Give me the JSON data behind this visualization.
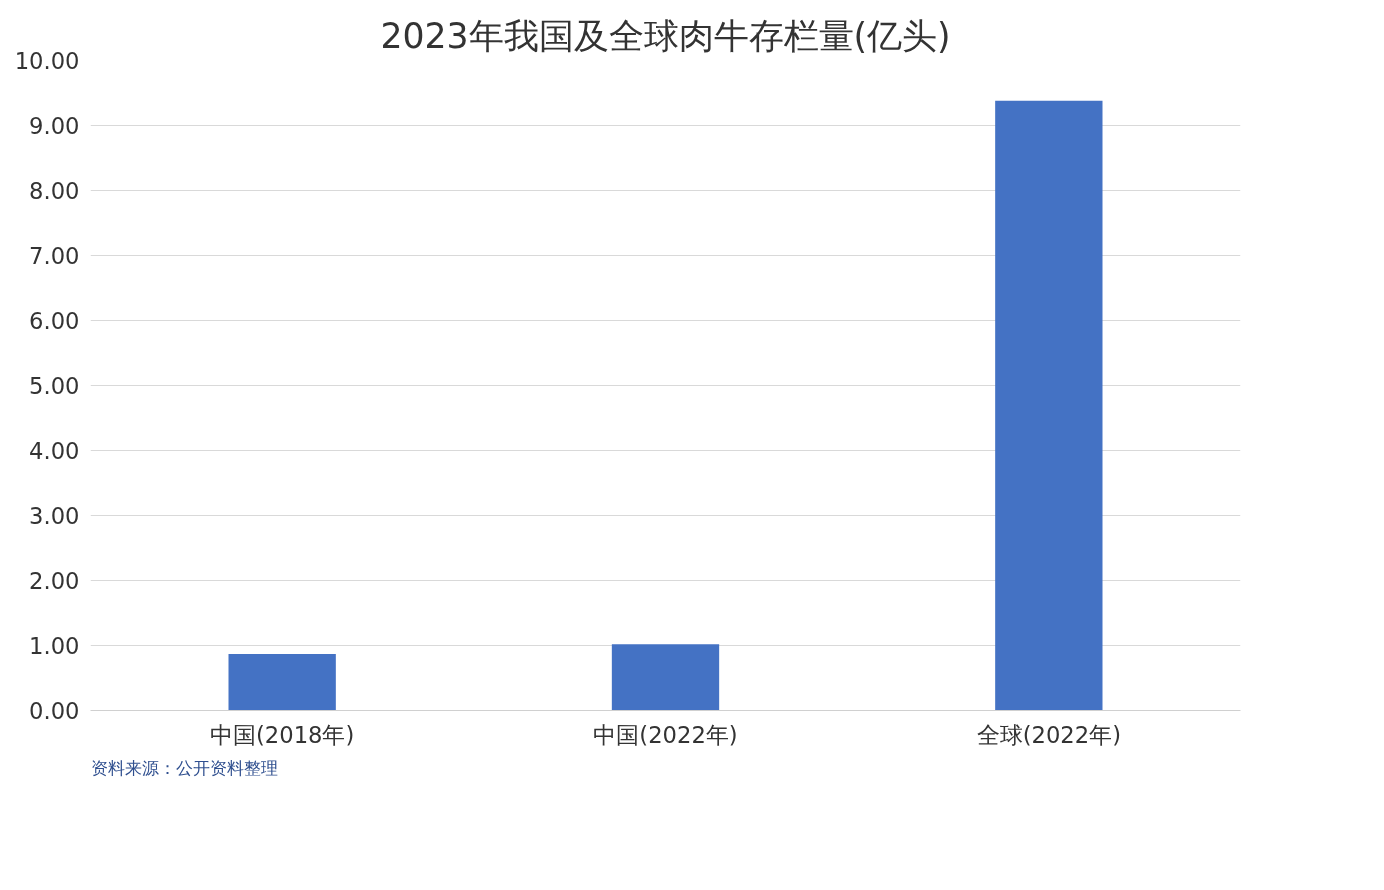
{
  "chart_data": {
    "type": "bar",
    "title": "2023年我国及全球肉牛存栏量(亿头)",
    "categories": [
      "中国(2018年)",
      "中国(2022年)",
      "全球(2022年)"
    ],
    "values": [
      0.87,
      1.02,
      9.38
    ],
    "color": "#4472c4",
    "ylim": [
      0,
      10
    ],
    "yticks": [
      {
        "value": 0,
        "label": "0.00"
      },
      {
        "value": 1,
        "label": "1.00"
      },
      {
        "value": 2,
        "label": "2.00"
      },
      {
        "value": 3,
        "label": "3.00"
      },
      {
        "value": 4,
        "label": "4.00"
      },
      {
        "value": 5,
        "label": "5.00"
      },
      {
        "value": 6,
        "label": "6.00"
      },
      {
        "value": 7,
        "label": "7.00"
      },
      {
        "value": 8,
        "label": "8.00"
      },
      {
        "value": 9,
        "label": "9.00"
      },
      {
        "value": 10,
        "label": "10.00"
      }
    ],
    "grid": "y",
    "annotations": [
      "资料来源：公开资料整理"
    ]
  }
}
